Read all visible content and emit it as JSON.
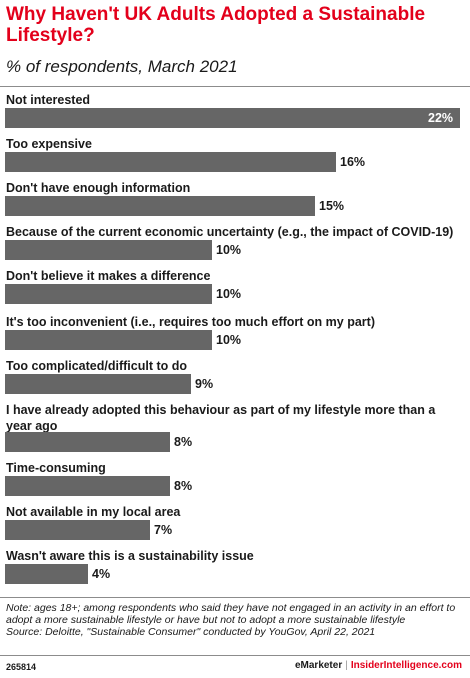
{
  "title": "Why Haven't UK Adults Adopted a Sustainable Lifestyle?",
  "subtitle": "% of respondents, March 2021",
  "chart_data": {
    "type": "bar",
    "orientation": "horizontal",
    "value_suffix": "%",
    "categories": [
      "Not interested",
      "Too expensive",
      "Don't have enough information",
      "Because of the current economic uncertainty (e.g., the impact of COVID-19)",
      "Don't believe it makes a difference",
      "It's too inconvenient (i.e., requires too much effort on my part)",
      "Too complicated/difficult to do",
      "I have already adopted this behaviour as part of my lifestyle more than a year ago",
      "Time-consuming",
      "Not available in my local area",
      "Wasn't aware this is a sustainability issue"
    ],
    "values": [
      22,
      16,
      15,
      10,
      10,
      10,
      9,
      8,
      8,
      7,
      4
    ],
    "xlim": [
      0,
      22
    ],
    "bar_color": "#666666"
  },
  "note": "Note: ages 18+; among respondents who said they have not engaged in an activity in an effort to adopt a more sustainable lifestyle or have but not to adopt a more sustainable lifestyle",
  "source": "Source: Deloitte, \"Sustainable Consumer\" conducted by YouGov, April 22, 2021",
  "footer": {
    "chart_id": "265814",
    "brand_left": "eMarketer",
    "brand_sep": "|",
    "brand_right": "InsiderIntelligence.com"
  },
  "colors": {
    "title": "#e3001b",
    "bar": "#666666"
  }
}
